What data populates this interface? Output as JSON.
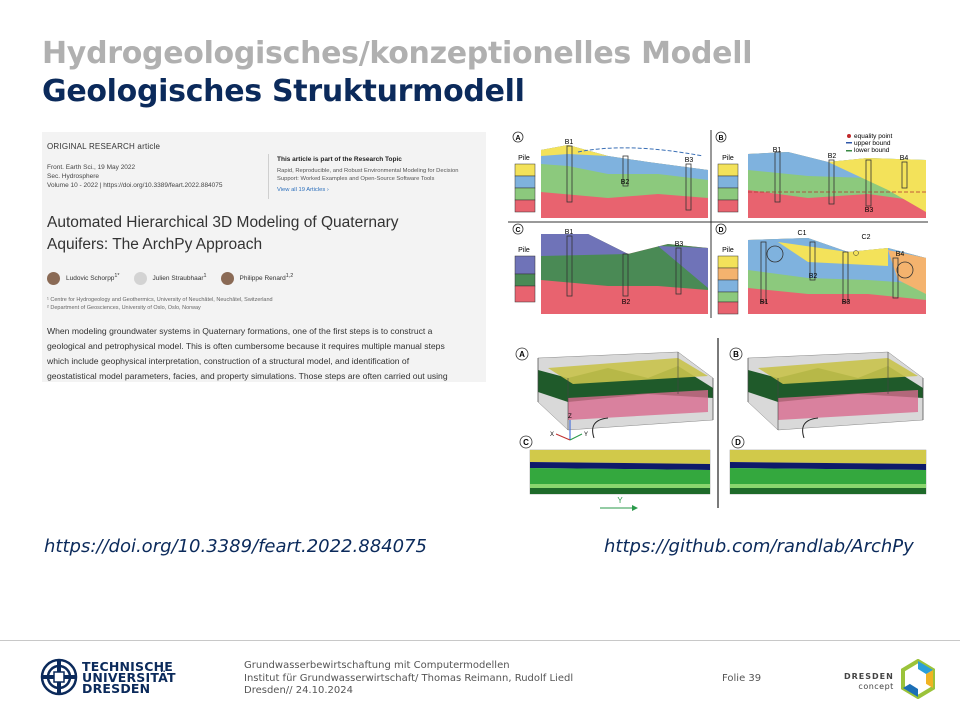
{
  "slide": {
    "title_gray": "Hydrogeologisches/konzeptionelles Modell",
    "title_blue": "Geologisches Strukturmodell"
  },
  "paper": {
    "type": "ORIGINAL RESEARCH article",
    "journal": "Front. Earth Sci., 19 May 2022",
    "section": "Sec. Hydrosphere",
    "volume": "Volume 10 - 2022 | https://doi.org/10.3389/feart.2022.884075",
    "topic_head": "This article is part of the Research Topic",
    "topic_line1": "Rapid, Reproducible, and Robust Environmental Modeling for Decision",
    "topic_line2": "Support: Worked Examples and Open-Source Software Tools",
    "topic_link": "View all 19 Articles ›",
    "title_line1": "Automated Hierarchical 3D Modeling of Quaternary",
    "title_line2": "Aquifers: The ArchPy Approach",
    "authors": [
      {
        "name": "Ludovic Schorpp",
        "sup": "1*"
      },
      {
        "name": "Julien Straubhaar",
        "sup": "1"
      },
      {
        "name": "Philippe Renard",
        "sup": "1,2"
      }
    ],
    "aff1": "¹ Centre for Hydrogeology and Geothermics, University of Neuchâtel, Neuchâtel, Switzerland",
    "aff2": "² Department of Geosciences, University of Oslo, Oslo, Norway",
    "abstract_l1": "When modeling groundwater systems in Quaternary formations, one of the first steps is to construct a",
    "abstract_l2": "geological and petrophysical model. This is often cumbersome because it requires multiple manual steps",
    "abstract_l3": "which include geophysical interpretation, construction of a structural model, and identification of",
    "abstract_l4": "geostatistical model parameters, facies, and property simulations. Those steps are often carried out using"
  },
  "figure1": {
    "panels": [
      "A",
      "B",
      "C",
      "D"
    ],
    "pile": "Pile",
    "boreholes": {
      "b1": "B1",
      "b2": "B2",
      "b3": "B3",
      "b4": "B4",
      "c1": "C1",
      "c2": "C2"
    },
    "legend": [
      "equality point",
      "upper bound",
      "lower bound"
    ],
    "colors": {
      "yellow": "#f3e25a",
      "blue": "#7fb2de",
      "green": "#8cc97d",
      "red": "#e8636f",
      "purple": "#6f73b8",
      "darkgreen": "#4a8a55"
    }
  },
  "figure2": {
    "panels": [
      "A",
      "B",
      "C",
      "D"
    ],
    "axes": {
      "x": "X",
      "y": "Y",
      "z": "Z"
    }
  },
  "links": {
    "doi": "https://doi.org/10.3389/feart.2022.884075",
    "github": "https://github.com/randlab/ArchPy"
  },
  "footer": {
    "tud_l1": "TECHNISCHE",
    "tud_l2": "UNIVERSITÄT",
    "tud_l3": "DRESDEN",
    "line1": "Grundwasserbewirtschaftung mit Computermodellen",
    "line2": "Institut für Grundwasserwirtschaft/ Thomas Reimann, Rudolf Liedl",
    "line3": "Dresden// 24.10.2024",
    "folie": "Folie 39",
    "dd1": "DRESDEN",
    "dd2": "concept"
  }
}
